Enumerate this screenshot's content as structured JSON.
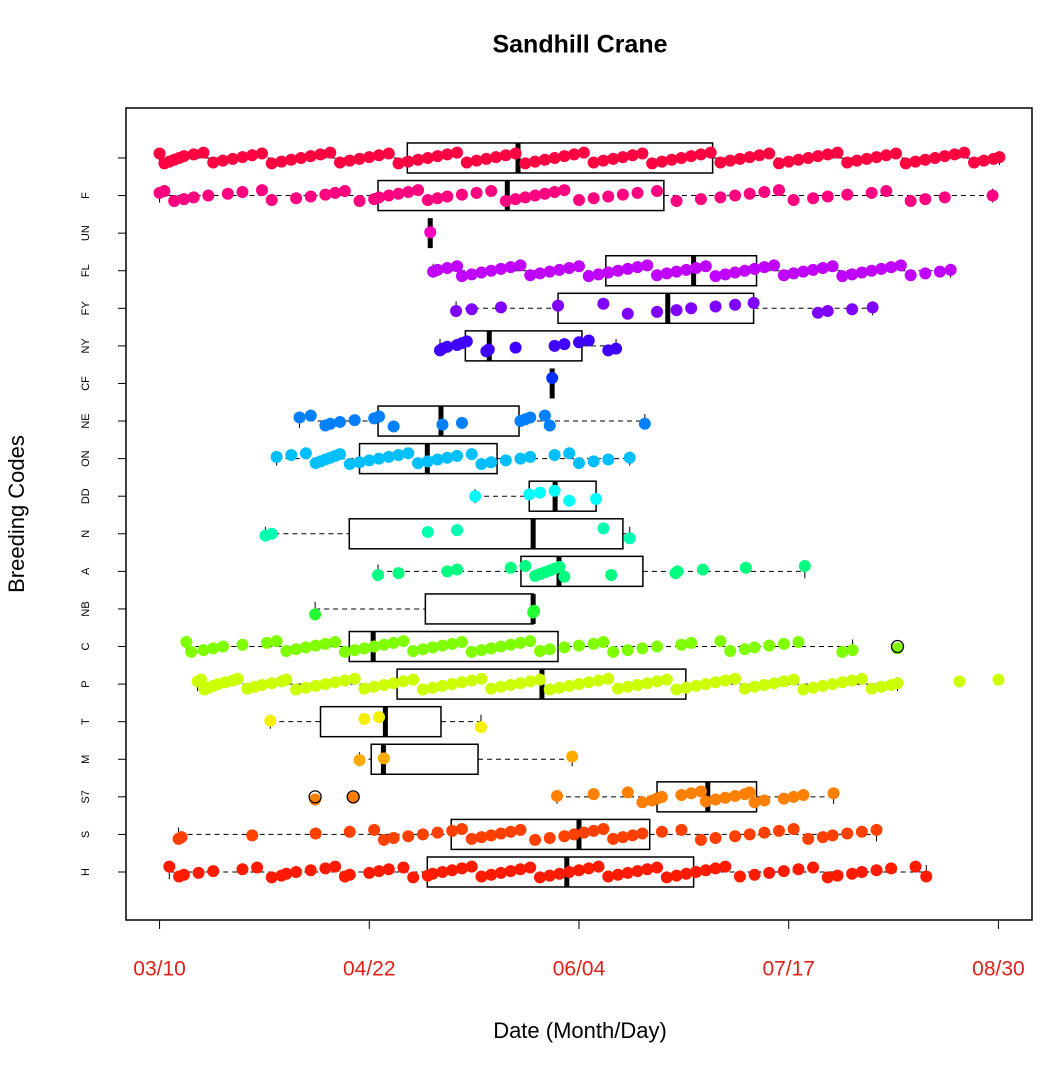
{
  "chart_data": {
    "type": "box",
    "title": "Sandhill Crane",
    "x_label": "Date (Month/Day)",
    "y_label": "Breeding Codes",
    "xlim": [
      62.12,
      247.88
    ],
    "xticks": [
      {
        "value": 69,
        "label": "03/10"
      },
      {
        "value": 112,
        "label": "04/22"
      },
      {
        "value": 155,
        "label": "06/04"
      },
      {
        "value": 198,
        "label": "07/17"
      },
      {
        "value": 241,
        "label": "08/30"
      }
    ],
    "categories": [
      "H",
      "S",
      "S7",
      "M",
      "T",
      "P",
      "C",
      "NB",
      "A",
      "N",
      "DD",
      "ON",
      "NE",
      "CF",
      "NY",
      "FY",
      "FL",
      "UN",
      "F",
      null
    ],
    "boxes": [
      {
        "color": "#ff1a00",
        "whisker_low": 71.0,
        "q1": 123.9,
        "median": 152.5,
        "q3": 178.5,
        "whisker_high": 226.2,
        "points": [
          71,
          73,
          74,
          77,
          80,
          86,
          89,
          92,
          94,
          95,
          97,
          100,
          103,
          105,
          107,
          108,
          112,
          114,
          116,
          119,
          121,
          124,
          125,
          127,
          129,
          131,
          133,
          135,
          137,
          139,
          141,
          143,
          145,
          147,
          149,
          151,
          153,
          155,
          157,
          159,
          161,
          163,
          165,
          167,
          169,
          171,
          173,
          175,
          177,
          179,
          181,
          183,
          185,
          188,
          191,
          194,
          197,
          200,
          203,
          206,
          208,
          211,
          213,
          216,
          219,
          224,
          226.2
        ],
        "outliers": []
      },
      {
        "color": "#ff4000",
        "whisker_low": 72.9,
        "q1": 128.8,
        "median": 155.0,
        "q3": 169.5,
        "whisker_high": 216.0,
        "points": [
          72.9,
          73.5,
          88,
          101,
          108,
          113,
          115,
          117,
          120,
          123,
          126,
          129,
          131,
          133,
          135,
          137,
          139,
          141,
          143,
          146,
          149,
          152,
          154,
          156,
          158,
          160,
          162,
          164,
          166,
          168,
          172,
          176,
          180,
          183,
          187,
          190,
          193,
          196,
          199,
          202,
          205,
          207,
          210,
          213,
          216
        ],
        "outliers": []
      },
      {
        "color": "#ff7f00",
        "whisker_low": 150.5,
        "q1": 171.0,
        "median": 181.4,
        "q3": 191.4,
        "whisker_high": 207.2,
        "points": [
          100.9,
          108.7,
          150.5,
          158,
          165,
          168,
          170,
          171,
          172,
          176,
          178,
          180,
          181,
          183,
          185,
          187,
          189,
          190,
          191,
          193,
          197,
          199,
          201,
          207.2
        ],
        "outliers": [
          100.9,
          108.7
        ]
      },
      {
        "color": "#ffaa00",
        "whisker_low": 110.0,
        "q1": 112.4,
        "median": 114.9,
        "q3": 134.3,
        "whisker_high": 153.6,
        "points": [
          110,
          115,
          153.6
        ],
        "outliers": []
      },
      {
        "color": "#f5f000",
        "whisker_low": 91.7,
        "q1": 102.0,
        "median": 115.3,
        "q3": 126.7,
        "whisker_high": 134.9,
        "points": [
          91.7,
          111,
          114,
          134.9
        ],
        "outliers": []
      },
      {
        "color": "#ccff00",
        "whisker_low": 76.8,
        "q1": 117.7,
        "median": 147.4,
        "q3": 176.9,
        "whisker_high": 220.3,
        "points": [
          76.8,
          77.5,
          78.2,
          79,
          80,
          81,
          82.5,
          84,
          85,
          87,
          88.5,
          90,
          92,
          94,
          95,
          97,
          99,
          101,
          103,
          105,
          107,
          109,
          111,
          113,
          115,
          117,
          119,
          121,
          123,
          125,
          127,
          129,
          131,
          133,
          135,
          137,
          139,
          141,
          143,
          145,
          147,
          149,
          151,
          153,
          155,
          157,
          159,
          161,
          163,
          165,
          167,
          169,
          171,
          173,
          175,
          177,
          179,
          181,
          183,
          185,
          187,
          189,
          191,
          193,
          195,
          197,
          199,
          201,
          203,
          205,
          207,
          209,
          211,
          213,
          215,
          217,
          219,
          220.3,
          233,
          241
        ],
        "outliers": []
      },
      {
        "color": "#80ff00",
        "whisker_low": 74.5,
        "q1": 107.9,
        "median": 112.8,
        "q3": 150.7,
        "whisker_high": 211.1,
        "points": [
          74.5,
          75.5,
          78,
          80,
          82,
          86,
          91,
          93,
          95,
          97,
          99,
          101,
          103,
          105,
          107,
          109,
          111,
          113,
          115,
          117,
          119,
          121,
          123,
          125,
          127,
          129,
          131,
          133,
          135,
          137,
          139,
          141,
          143,
          145,
          147,
          149,
          152,
          155,
          158,
          160,
          162,
          165,
          168,
          171,
          176,
          178,
          184,
          186,
          189,
          191,
          194,
          197,
          200,
          209,
          211.1,
          220.3
        ],
        "outliers": [
          220.3
        ]
      },
      {
        "color": "#22ff33",
        "whisker_low": 100.9,
        "q1": 123.5,
        "median": 145.6,
        "q3": 145.6,
        "whisker_high": 145.6,
        "points": [
          100.9,
          145.6,
          145.8
        ],
        "outliers": []
      },
      {
        "color": "#00ff80",
        "whisker_low": 113.8,
        "q1": 143.1,
        "median": 150.9,
        "q3": 168.1,
        "whisker_high": 201.3,
        "points": [
          113.8,
          118,
          128,
          130,
          141,
          144,
          146,
          147,
          148,
          149,
          150,
          151,
          152,
          161.6,
          174.8,
          175.2,
          180.4,
          189.2,
          201.3
        ],
        "outliers": []
      },
      {
        "color": "#00ffb0",
        "whisker_low": 90.7,
        "q1": 107.9,
        "median": 145.6,
        "q3": 164.0,
        "whisker_high": 165.4,
        "points": [
          90.7,
          92,
          124,
          130,
          160,
          165.4
        ],
        "outliers": []
      },
      {
        "color": "#00ffff",
        "whisker_low": 133.7,
        "q1": 144.8,
        "median": 150.1,
        "q3": 158.5,
        "whisker_high": 158.5,
        "points": [
          133.7,
          144.8,
          147,
          150,
          153,
          158.5
        ],
        "outliers": []
      },
      {
        "color": "#00bfff",
        "whisker_low": 93.0,
        "q1": 110.0,
        "median": 123.9,
        "q3": 138.2,
        "whisker_high": 165.4,
        "points": [
          93,
          96,
          99,
          101,
          102,
          103,
          104,
          105,
          106,
          108,
          110,
          112,
          114,
          116,
          118,
          120,
          122,
          124,
          126,
          128,
          130,
          133,
          135,
          137,
          140,
          143,
          145,
          150,
          153,
          155,
          158,
          161,
          165.4
        ],
        "outliers": []
      },
      {
        "color": "#0080ff",
        "whisker_low": 97.7,
        "q1": 113.8,
        "median": 126.7,
        "q3": 142.7,
        "whisker_high": 168.5,
        "points": [
          97.7,
          100,
          103,
          104,
          106,
          109,
          113,
          114,
          117,
          127,
          131,
          143,
          144,
          145,
          148,
          149,
          168.5
        ],
        "outliers": []
      },
      {
        "color": "#0030ff",
        "whisker_low": 149.5,
        "q1": 149.5,
        "median": 149.5,
        "q3": 149.5,
        "whisker_high": 149.5,
        "points": [
          149.5
        ],
        "outliers": []
      },
      {
        "color": "#4000ff",
        "whisker_low": 126.5,
        "q1": 131.7,
        "median": 136.6,
        "q3": 155.6,
        "whisker_high": 162.6,
        "points": [
          126.5,
          127,
          128,
          130,
          131,
          132,
          136,
          136.5,
          142,
          150,
          152,
          155,
          157,
          161,
          162.6
        ],
        "outliers": []
      },
      {
        "color": "#8000ff",
        "whisker_low": 129.8,
        "q1": 150.7,
        "median": 173.2,
        "q3": 190.8,
        "whisker_high": 215.2,
        "points": [
          129.8,
          133,
          139,
          150.7,
          160,
          165,
          171,
          175,
          178,
          183,
          187,
          190.8,
          204,
          206,
          211,
          215.2
        ],
        "outliers": []
      },
      {
        "color": "#bf00ff",
        "whisker_low": 125.1,
        "q1": 160.5,
        "median": 178.5,
        "q3": 191.4,
        "whisker_high": 231.2,
        "points": [
          125.1,
          126,
          128,
          130,
          131,
          133,
          135,
          137,
          139,
          141,
          143,
          145,
          147,
          149,
          151,
          153,
          155,
          157,
          159,
          161,
          163,
          165,
          167,
          169,
          171,
          173,
          175,
          177,
          179,
          181,
          183,
          185,
          187,
          189,
          191,
          193,
          195,
          197,
          199,
          201,
          203,
          205,
          207,
          209,
          211,
          213,
          215,
          217,
          219,
          221,
          223,
          226,
          229,
          231.2
        ],
        "outliers": []
      },
      {
        "color": "#ff00c0",
        "whisker_low": 124.5,
        "q1": 124.5,
        "median": 124.5,
        "q3": 124.5,
        "whisker_high": 124.5,
        "points": [
          124.5
        ],
        "outliers": []
      },
      {
        "color": "#ff0080",
        "whisker_low": 69,
        "q1": 113.8,
        "median": 140.3,
        "q3": 172.4,
        "whisker_high": 239.8,
        "points": [
          69,
          70,
          72,
          74,
          76,
          79,
          83,
          86,
          90,
          92,
          97,
          100,
          103,
          105,
          107,
          110,
          113,
          114,
          116,
          118,
          120,
          122,
          124,
          126,
          128,
          131,
          134,
          137,
          140,
          142,
          144,
          146,
          148,
          150,
          152,
          155,
          158,
          161,
          164,
          167,
          171,
          175,
          180,
          184,
          187,
          190,
          193,
          196,
          199,
          203,
          206,
          210,
          215,
          218,
          223,
          226,
          230,
          239.8
        ],
        "outliers": []
      },
      {
        "color": "#ff0040",
        "whisker_low": 69,
        "q1": 119.8,
        "median": 142.5,
        "q3": 182.4,
        "whisker_high": 241.2,
        "points": [
          69,
          70,
          71,
          72,
          73,
          74,
          76,
          78,
          80,
          82,
          84,
          86,
          88,
          90,
          92,
          94,
          96,
          98,
          100,
          102,
          104,
          106,
          108,
          110,
          112,
          114,
          116,
          118,
          120,
          122,
          124,
          126,
          128,
          130,
          132,
          134,
          136,
          138,
          140,
          142,
          144,
          146,
          148,
          150,
          152,
          154,
          156,
          158,
          160,
          162,
          164,
          166,
          168,
          170,
          172,
          174,
          176,
          178,
          180,
          182,
          184,
          186,
          188,
          190,
          192,
          194,
          196,
          198,
          200,
          202,
          204,
          206,
          208,
          210,
          212,
          214,
          216,
          218,
          220,
          222,
          224,
          226,
          228,
          230,
          232,
          234,
          236,
          238,
          240,
          241.2
        ],
        "outliers": []
      }
    ]
  }
}
